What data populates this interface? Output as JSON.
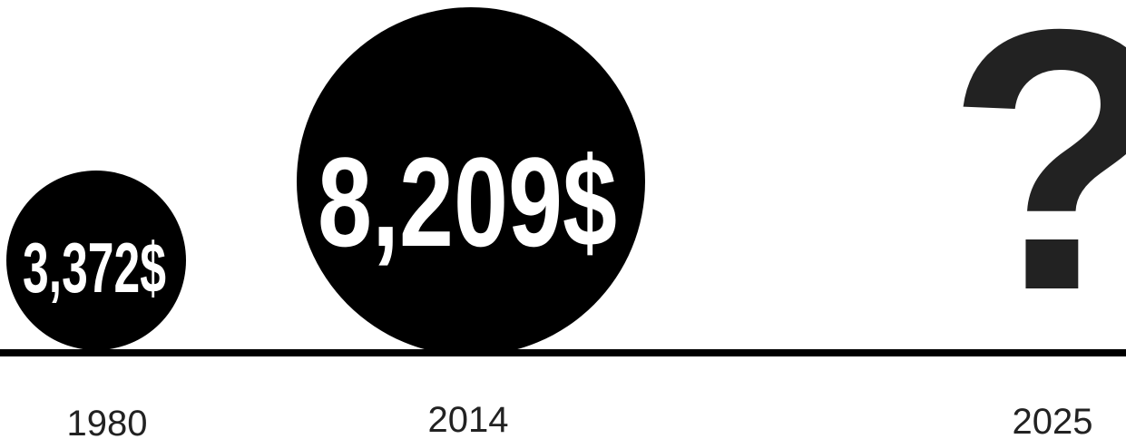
{
  "items": [
    {
      "year": "1980",
      "label": "3,372$"
    },
    {
      "year": "2014",
      "label": "8,209$"
    },
    {
      "year": "2025",
      "label": "?"
    }
  ]
}
